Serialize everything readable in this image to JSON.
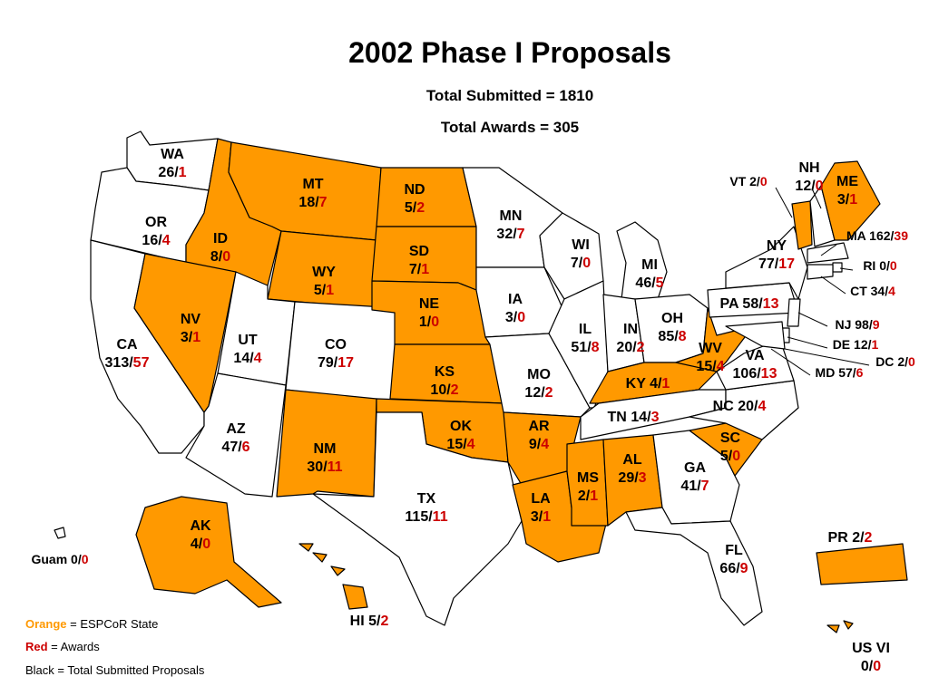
{
  "title": "2002 Phase I Proposals",
  "total_submitted_label": "Total Submitted = 1810",
  "total_awards_label": "Total Awards = 305",
  "colors": {
    "epscor_fill": "#FF9900",
    "non_epscor_fill": "#FFFFFF",
    "border": "#000000",
    "awards_text": "#CC0000",
    "submitted_text": "#000000"
  },
  "legend": {
    "orange_word": "Orange",
    "orange_desc": " = ESPCoR State",
    "red_word": "Red",
    "red_desc": " = Awards",
    "black_desc": "Black = Total Submitted Proposals"
  },
  "states": {
    "WA": {
      "name": "WA",
      "submitted": 26,
      "awards": 1,
      "epscor": false
    },
    "OR": {
      "name": "OR",
      "submitted": 16,
      "awards": 4,
      "epscor": false
    },
    "CA": {
      "name": "CA",
      "submitted": 313,
      "awards": 57,
      "epscor": false
    },
    "ID": {
      "name": "ID",
      "submitted": 8,
      "awards": 0,
      "epscor": true
    },
    "NV": {
      "name": "NV",
      "submitted": 3,
      "awards": 1,
      "epscor": true
    },
    "MT": {
      "name": "MT",
      "submitted": 18,
      "awards": 7,
      "epscor": true
    },
    "WY": {
      "name": "WY",
      "submitted": 5,
      "awards": 1,
      "epscor": true
    },
    "UT": {
      "name": "UT",
      "submitted": 14,
      "awards": 4,
      "epscor": false
    },
    "AZ": {
      "name": "AZ",
      "submitted": 47,
      "awards": 6,
      "epscor": false
    },
    "CO": {
      "name": "CO",
      "submitted": 79,
      "awards": 17,
      "epscor": false
    },
    "NM": {
      "name": "NM",
      "submitted": 30,
      "awards": 11,
      "epscor": true
    },
    "ND": {
      "name": "ND",
      "submitted": 5,
      "awards": 2,
      "epscor": true
    },
    "SD": {
      "name": "SD",
      "submitted": 7,
      "awards": 1,
      "epscor": true
    },
    "NE": {
      "name": "NE",
      "submitted": 1,
      "awards": 0,
      "epscor": true
    },
    "KS": {
      "name": "KS",
      "submitted": 10,
      "awards": 2,
      "epscor": true
    },
    "OK": {
      "name": "OK",
      "submitted": 15,
      "awards": 4,
      "epscor": true
    },
    "TX": {
      "name": "TX",
      "submitted": 115,
      "awards": 11,
      "epscor": false
    },
    "MN": {
      "name": "MN",
      "submitted": 32,
      "awards": 7,
      "epscor": false
    },
    "IA": {
      "name": "IA",
      "submitted": 3,
      "awards": 0,
      "epscor": false
    },
    "MO": {
      "name": "MO",
      "submitted": 12,
      "awards": 2,
      "epscor": false
    },
    "AR": {
      "name": "AR",
      "submitted": 9,
      "awards": 4,
      "epscor": true
    },
    "LA": {
      "name": "LA",
      "submitted": 3,
      "awards": 1,
      "epscor": true
    },
    "WI": {
      "name": "WI",
      "submitted": 7,
      "awards": 0,
      "epscor": false
    },
    "IL": {
      "name": "IL",
      "submitted": 51,
      "awards": 8,
      "epscor": false
    },
    "MI": {
      "name": "MI",
      "submitted": 46,
      "awards": 5,
      "epscor": false
    },
    "IN": {
      "name": "IN",
      "submitted": 20,
      "awards": 2,
      "epscor": false
    },
    "OH": {
      "name": "OH",
      "submitted": 85,
      "awards": 8,
      "epscor": false
    },
    "KY": {
      "name": "KY",
      "submitted": 4,
      "awards": 1,
      "epscor": true
    },
    "TN": {
      "name": "TN",
      "submitted": 14,
      "awards": 3,
      "epscor": false
    },
    "MS": {
      "name": "MS",
      "submitted": 2,
      "awards": 1,
      "epscor": true
    },
    "AL": {
      "name": "AL",
      "submitted": 29,
      "awards": 3,
      "epscor": true
    },
    "GA": {
      "name": "GA",
      "submitted": 41,
      "awards": 7,
      "epscor": false
    },
    "FL": {
      "name": "FL",
      "submitted": 66,
      "awards": 9,
      "epscor": false
    },
    "SC": {
      "name": "SC",
      "submitted": 5,
      "awards": 0,
      "epscor": true
    },
    "NC": {
      "name": "NC",
      "submitted": 20,
      "awards": 4,
      "epscor": false
    },
    "VA": {
      "name": "VA",
      "submitted": 106,
      "awards": 13,
      "epscor": false
    },
    "WV": {
      "name": "WV",
      "submitted": 15,
      "awards": 4,
      "epscor": true
    },
    "PA": {
      "name": "PA",
      "submitted": 58,
      "awards": 13,
      "epscor": false
    },
    "NY": {
      "name": "NY",
      "submitted": 77,
      "awards": 17,
      "epscor": false
    },
    "VT": {
      "name": "VT",
      "submitted": 2,
      "awards": 0,
      "epscor": true
    },
    "NH": {
      "name": "NH",
      "submitted": 12,
      "awards": 0,
      "epscor": false
    },
    "ME": {
      "name": "ME",
      "submitted": 3,
      "awards": 1,
      "epscor": true
    },
    "MA": {
      "name": "MA",
      "submitted": 162,
      "awards": 39,
      "epscor": false
    },
    "RI": {
      "name": "RI",
      "submitted": 0,
      "awards": 0,
      "epscor": false
    },
    "CT": {
      "name": "CT",
      "submitted": 34,
      "awards": 4,
      "epscor": false
    },
    "NJ": {
      "name": "NJ",
      "submitted": 98,
      "awards": 9,
      "epscor": false
    },
    "DE": {
      "name": "DE",
      "submitted": 12,
      "awards": 1,
      "epscor": false
    },
    "DC": {
      "name": "DC",
      "submitted": 2,
      "awards": 0,
      "epscor": false
    },
    "MD": {
      "name": "MD",
      "submitted": 57,
      "awards": 6,
      "epscor": false
    },
    "AK": {
      "name": "AK",
      "submitted": 4,
      "awards": 0,
      "epscor": true
    },
    "HI": {
      "name": "HI",
      "submitted": 5,
      "awards": 2,
      "epscor": true
    },
    "PR": {
      "name": "PR",
      "submitted": 2,
      "awards": 2,
      "epscor": true
    },
    "Guam": {
      "name": "Guam",
      "submitted": 0,
      "awards": 0,
      "epscor": false
    },
    "USVI": {
      "name": "US VI",
      "submitted": 0,
      "awards": 0,
      "epscor": true
    }
  }
}
